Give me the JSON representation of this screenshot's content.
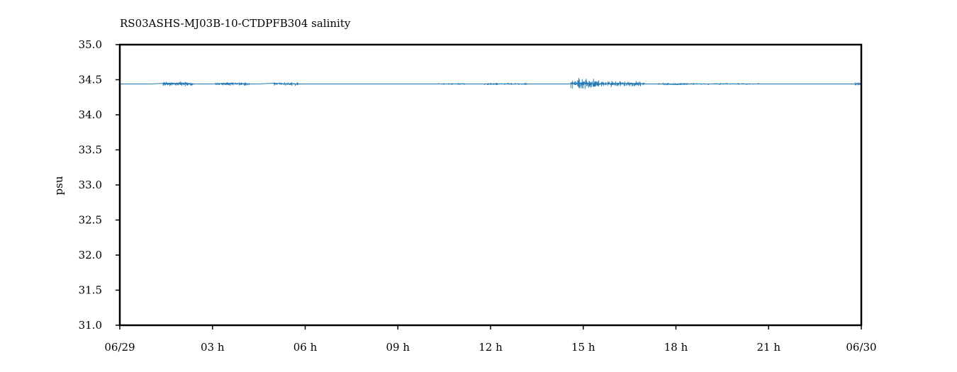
{
  "chart_data": {
    "type": "line",
    "title": "RS03ASHS-MJ03B-10-CTDPFB304 salinity",
    "xlabel": "",
    "ylabel": "psu",
    "ylim": [
      31.0,
      35.0
    ],
    "yticks": [
      "31.0",
      "31.5",
      "32.0",
      "32.5",
      "33.0",
      "33.5",
      "34.0",
      "34.5",
      "35.0"
    ],
    "xlim_hours": [
      0,
      24
    ],
    "xticks": [
      {
        "hour": 0,
        "label": "06/29"
      },
      {
        "hour": 3,
        "label": "03 h"
      },
      {
        "hour": 6,
        "label": "06 h"
      },
      {
        "hour": 9,
        "label": "09 h"
      },
      {
        "hour": 12,
        "label": "12 h"
      },
      {
        "hour": 15,
        "label": "15 h"
      },
      {
        "hour": 18,
        "label": "18 h"
      },
      {
        "hour": 21,
        "label": "21 h"
      },
      {
        "hour": 24,
        "label": "06/30"
      }
    ],
    "grid": false,
    "legend": "none",
    "series": [
      {
        "color": "#1f77b4",
        "baseline": 34.44,
        "x_hours": [
          0.0,
          0.5,
          1.0,
          1.5,
          2.0,
          2.5,
          3.0,
          3.5,
          4.0,
          4.5,
          5.0,
          5.5,
          6.0,
          6.5,
          7.0,
          7.5,
          8.0,
          8.5,
          9.0,
          9.5,
          10.0,
          10.5,
          11.0,
          11.5,
          12.0,
          12.5,
          13.0,
          13.5,
          14.0,
          14.5,
          15.0,
          15.5,
          16.0,
          16.5,
          17.0,
          17.5,
          18.0,
          18.5,
          19.0,
          19.5,
          20.0,
          20.5,
          21.0,
          21.5,
          22.0,
          22.5,
          23.0,
          23.5,
          24.0
        ],
        "values": [
          34.44,
          34.44,
          34.44,
          34.45,
          34.45,
          34.44,
          34.44,
          34.45,
          34.44,
          34.44,
          34.45,
          34.44,
          34.44,
          34.44,
          34.44,
          34.44,
          34.44,
          34.44,
          34.44,
          34.44,
          34.44,
          34.44,
          34.44,
          34.44,
          34.44,
          34.44,
          34.44,
          34.44,
          34.44,
          34.44,
          34.45,
          34.44,
          34.44,
          34.45,
          34.44,
          34.44,
          34.43,
          34.44,
          34.44,
          34.44,
          34.44,
          34.44,
          34.44,
          34.44,
          34.44,
          34.44,
          34.44,
          34.44,
          34.44
        ],
        "noisy_intervals_hours": [
          {
            "start": 1.4,
            "end": 2.4,
            "amplitude": 0.04
          },
          {
            "start": 3.1,
            "end": 4.2,
            "amplitude": 0.03
          },
          {
            "start": 5.0,
            "end": 5.8,
            "amplitude": 0.03
          },
          {
            "start": 10.3,
            "end": 11.2,
            "amplitude": 0.015
          },
          {
            "start": 11.8,
            "end": 13.2,
            "amplitude": 0.02
          },
          {
            "start": 14.6,
            "end": 15.5,
            "amplitude": 0.09
          },
          {
            "start": 15.5,
            "end": 17.0,
            "amplitude": 0.05
          },
          {
            "start": 17.4,
            "end": 18.4,
            "amplitude": 0.02
          },
          {
            "start": 18.4,
            "end": 20.7,
            "amplitude": 0.015
          },
          {
            "start": 23.8,
            "end": 24.0,
            "amplitude": 0.03
          }
        ]
      }
    ]
  }
}
